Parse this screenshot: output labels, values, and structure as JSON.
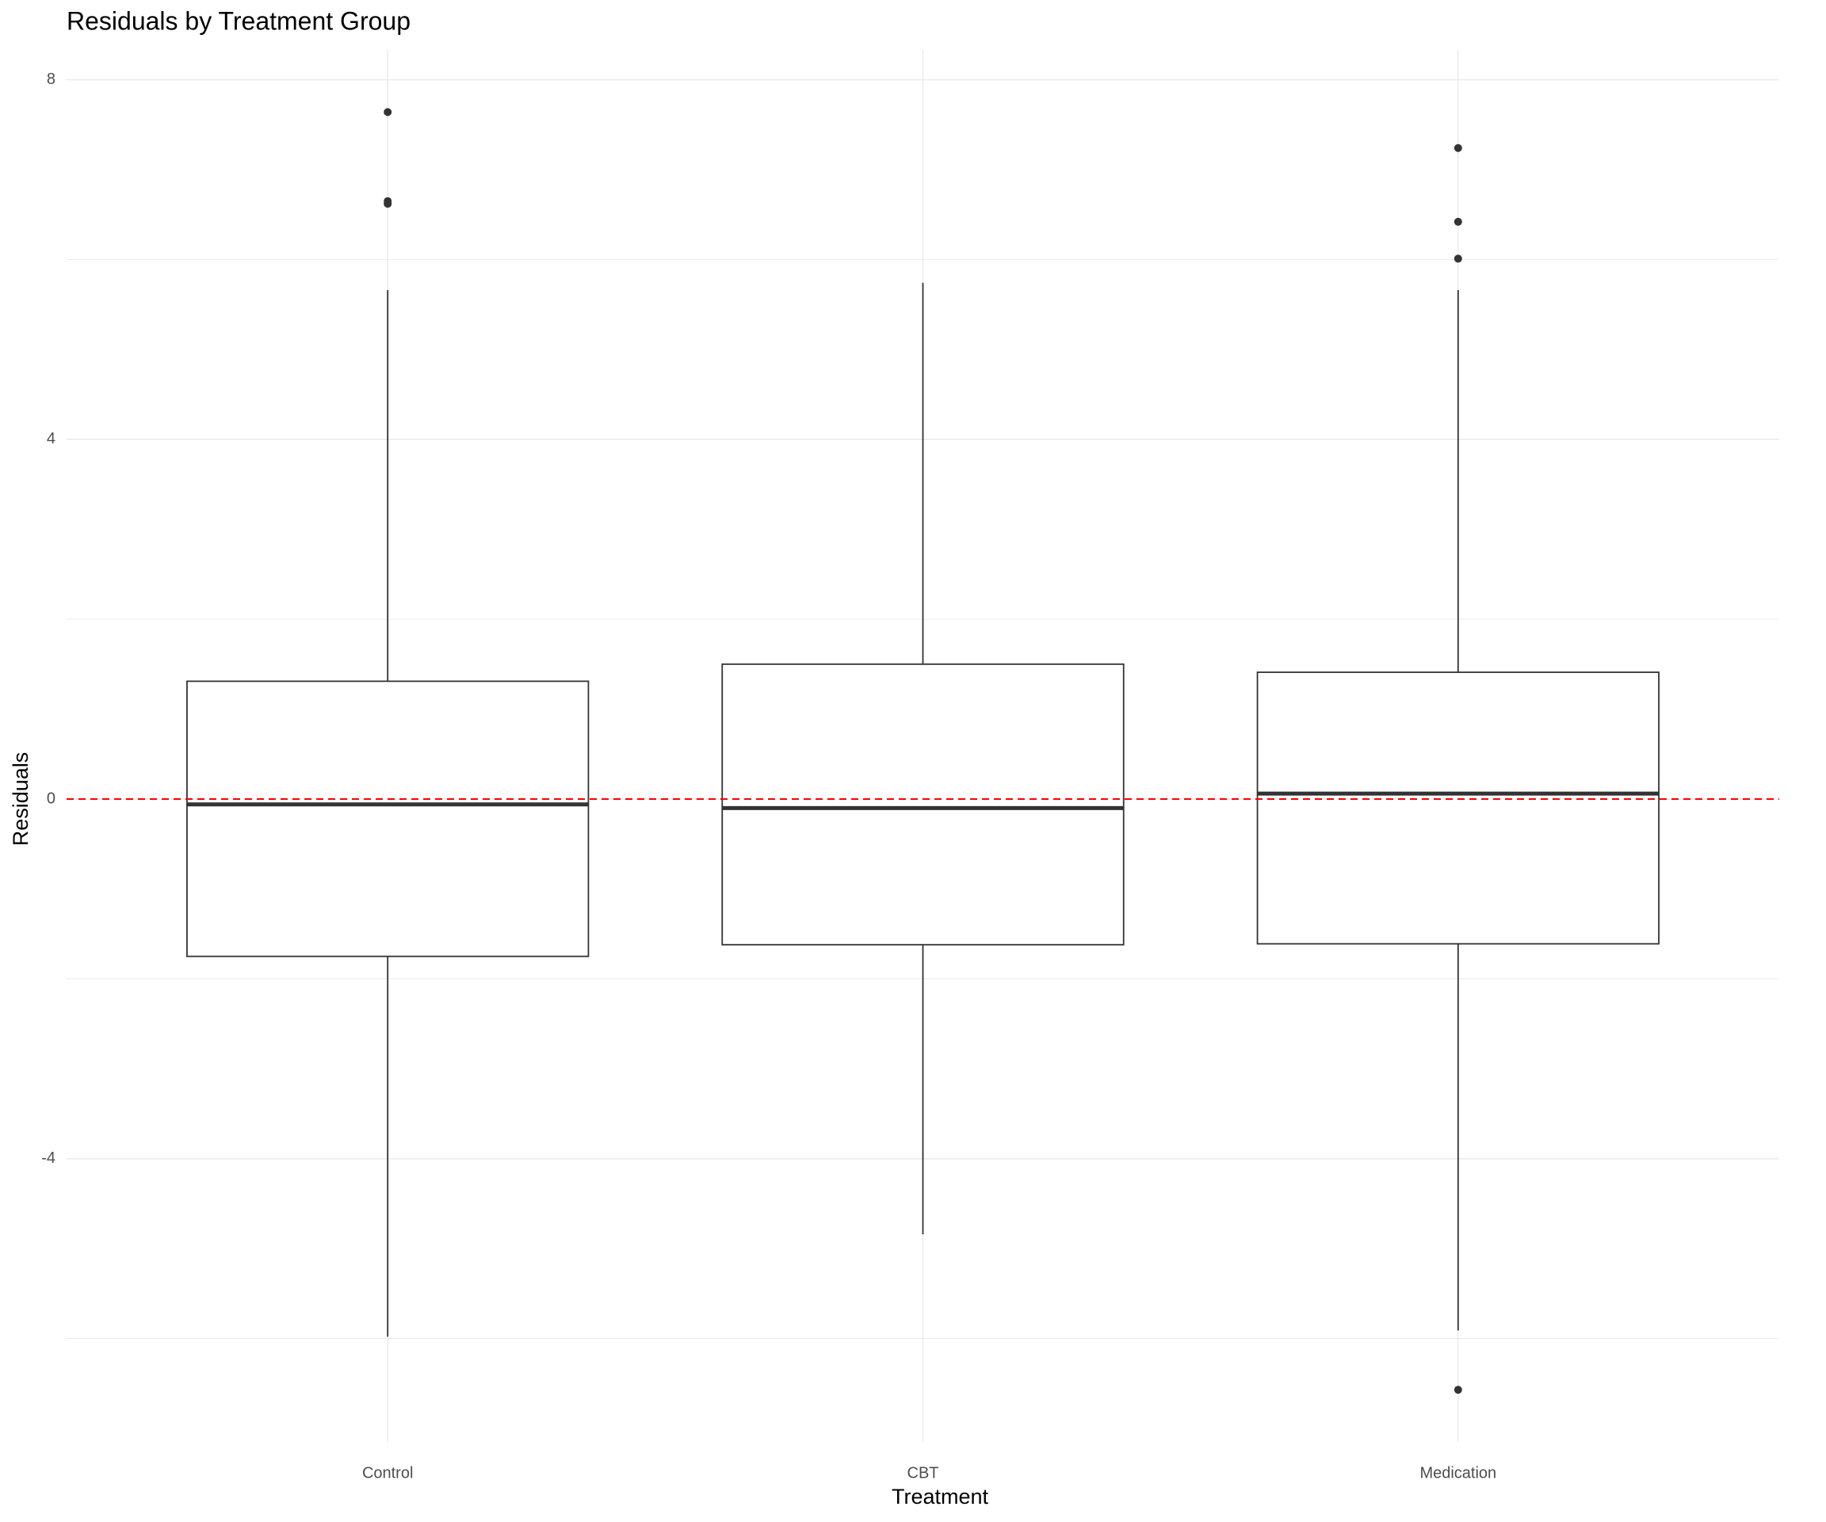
{
  "chart_data": {
    "type": "box",
    "title": "Residuals by Treatment Group",
    "x_label": "Treatment",
    "y_label": "Residuals",
    "categories": [
      "Control",
      "CBT",
      "Medication"
    ],
    "boxes": [
      {
        "whisker_low": -5.98,
        "q1": -1.75,
        "median": -0.06,
        "q3": 1.31,
        "whisker_high": 5.66,
        "outliers": [
          7.64,
          6.65,
          6.62
        ]
      },
      {
        "whisker_low": -4.84,
        "q1": -1.62,
        "median": -0.1,
        "q3": 1.5,
        "whisker_high": 5.74,
        "outliers": []
      },
      {
        "whisker_low": -5.91,
        "q1": -1.61,
        "median": 0.06,
        "q3": 1.41,
        "whisker_high": 5.66,
        "outliers": [
          7.24,
          6.42,
          6.01,
          -6.57
        ]
      }
    ],
    "ylim": [
      -7.15,
      8.34
    ],
    "yticks": [
      -4,
      0,
      4,
      8
    ],
    "minor_yticks": [
      -6,
      -2,
      2,
      6
    ],
    "grid": true,
    "reference_line": 0,
    "reference_color": "#ff0000",
    "box_color": "#333333"
  }
}
